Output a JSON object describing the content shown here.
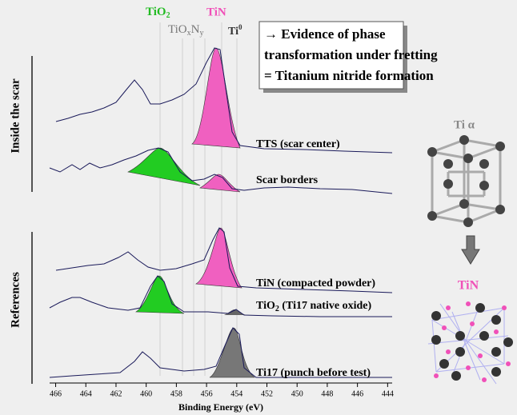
{
  "labels": {
    "tio2": {
      "base": "TiO",
      "sub": "2"
    },
    "tin": "TiN",
    "tioxny": {
      "a": "TiO",
      "x": "x",
      "b": "N",
      "y": "y"
    },
    "ti0": {
      "base": "Ti",
      "sup": "0"
    }
  },
  "box": [
    "→ Evidence of phase",
    "transformation under fretting",
    "= Titanium nitride formation"
  ],
  "groups": [
    "Inside the scar",
    "References"
  ],
  "spectra": [
    "TTS (scar center)",
    "Scar borders",
    "TiN (compacted powder)",
    {
      "base": "TiO",
      "sub": "2",
      "rest": " (Ti17 native oxide)"
    },
    "Ti17 (punch before test)"
  ],
  "axis": {
    "label": "Binding Energy (eV)",
    "xlim": [
      466.4,
      443.7
    ],
    "xticks": [
      466,
      464,
      462,
      460,
      458,
      456,
      454,
      452,
      450,
      448,
      446,
      444
    ]
  },
  "crystals": {
    "top": "Ti α",
    "bottom": "TiN"
  }
}
